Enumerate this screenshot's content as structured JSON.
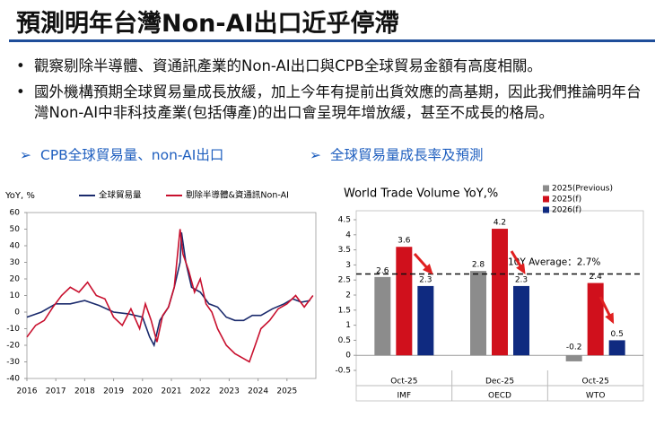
{
  "header": {
    "title": "預測明年台灣Non-AI出口近乎停滯"
  },
  "bullets": [
    "觀察剔除半導體、資通訊產業的Non-AI出口與CPB全球貿易金額有高度相關。",
    "國外機構預期全球貿易量成長放緩，加上今年有提前出貨效應的高基期，因此我們推論明年台灣Non-AI中非科技產業(包括傳產)的出口會呈現年增放緩，甚至不成長的格局。"
  ],
  "sections": [
    "CPB全球貿易量、non-AI出口",
    "全球貿易量成長率及預測"
  ],
  "chart_data": [
    {
      "type": "line",
      "y_label": "YoY, %",
      "xlim": [
        2016,
        2026
      ],
      "xticks": [
        2016,
        2017,
        2018,
        2019,
        2020,
        2021,
        2022,
        2023,
        2024,
        2025
      ],
      "ylim": [
        -40,
        60
      ],
      "yticks": [
        -40,
        -30,
        -20,
        -10,
        0,
        10,
        20,
        30,
        40,
        50,
        60
      ],
      "series": [
        {
          "name": "全球貿易量",
          "color": "#1a2a6c",
          "x": [
            2016.0,
            2016.5,
            2017.0,
            2017.5,
            2018.0,
            2018.5,
            2019.0,
            2019.5,
            2020.0,
            2020.25,
            2020.4,
            2020.6,
            2020.9,
            2021.1,
            2021.3,
            2021.35,
            2021.5,
            2021.7,
            2022.0,
            2022.3,
            2022.6,
            2022.9,
            2023.2,
            2023.5,
            2023.8,
            2024.1,
            2024.5,
            2024.9,
            2025.2,
            2025.5,
            2025.8
          ],
          "values": [
            -3,
            0,
            5,
            5,
            7,
            4,
            0,
            -1,
            -3,
            -15,
            -20,
            -5,
            3,
            15,
            30,
            48,
            30,
            15,
            12,
            5,
            3,
            -3,
            -5,
            -5,
            -2,
            -2,
            2,
            5,
            8,
            6,
            7
          ]
        },
        {
          "name": "剔除半導體&資通訊Non-AI",
          "color": "#c8102e",
          "x": [
            2016.0,
            2016.3,
            2016.6,
            2016.9,
            2017.2,
            2017.5,
            2017.8,
            2018.1,
            2018.4,
            2018.7,
            2019.0,
            2019.3,
            2019.6,
            2019.9,
            2020.1,
            2020.3,
            2020.5,
            2020.7,
            2020.9,
            2021.1,
            2021.3,
            2021.4,
            2021.6,
            2021.8,
            2022.0,
            2022.2,
            2022.4,
            2022.6,
            2022.9,
            2023.2,
            2023.5,
            2023.7,
            2023.9,
            2024.1,
            2024.4,
            2024.7,
            2025.0,
            2025.3,
            2025.6,
            2025.9
          ],
          "values": [
            -15,
            -8,
            -5,
            3,
            10,
            15,
            12,
            18,
            10,
            8,
            -3,
            -8,
            2,
            -10,
            5,
            -5,
            -18,
            -2,
            3,
            15,
            50,
            35,
            25,
            12,
            20,
            5,
            0,
            -10,
            -20,
            -25,
            -28,
            -30,
            -20,
            -10,
            -5,
            2,
            5,
            10,
            3,
            10
          ]
        }
      ]
    },
    {
      "type": "bar",
      "title": "World Trade Volume YoY,%",
      "categories": [
        "Oct-25",
        "Dec-25",
        "Oct-25"
      ],
      "category_groups": [
        "IMF",
        "OECD",
        "WTO"
      ],
      "ylim": [
        -0.5,
        4.5
      ],
      "yticks": [
        -0.5,
        0,
        0.5,
        1,
        1.5,
        2,
        2.5,
        3,
        3.5,
        4,
        4.5
      ],
      "reference_line": {
        "value": 2.7,
        "label": "10Y Average：2.7%"
      },
      "series": [
        {
          "name": "2025(Previous)",
          "color": "#8c8c8c",
          "values": [
            2.6,
            2.8,
            -0.2
          ]
        },
        {
          "name": "2025(f)",
          "color": "#d0101c",
          "values": [
            3.6,
            4.2,
            2.4
          ]
        },
        {
          "name": "2026(f)",
          "color": "#0f2a80",
          "values": [
            2.3,
            2.3,
            0.5
          ]
        }
      ]
    }
  ]
}
